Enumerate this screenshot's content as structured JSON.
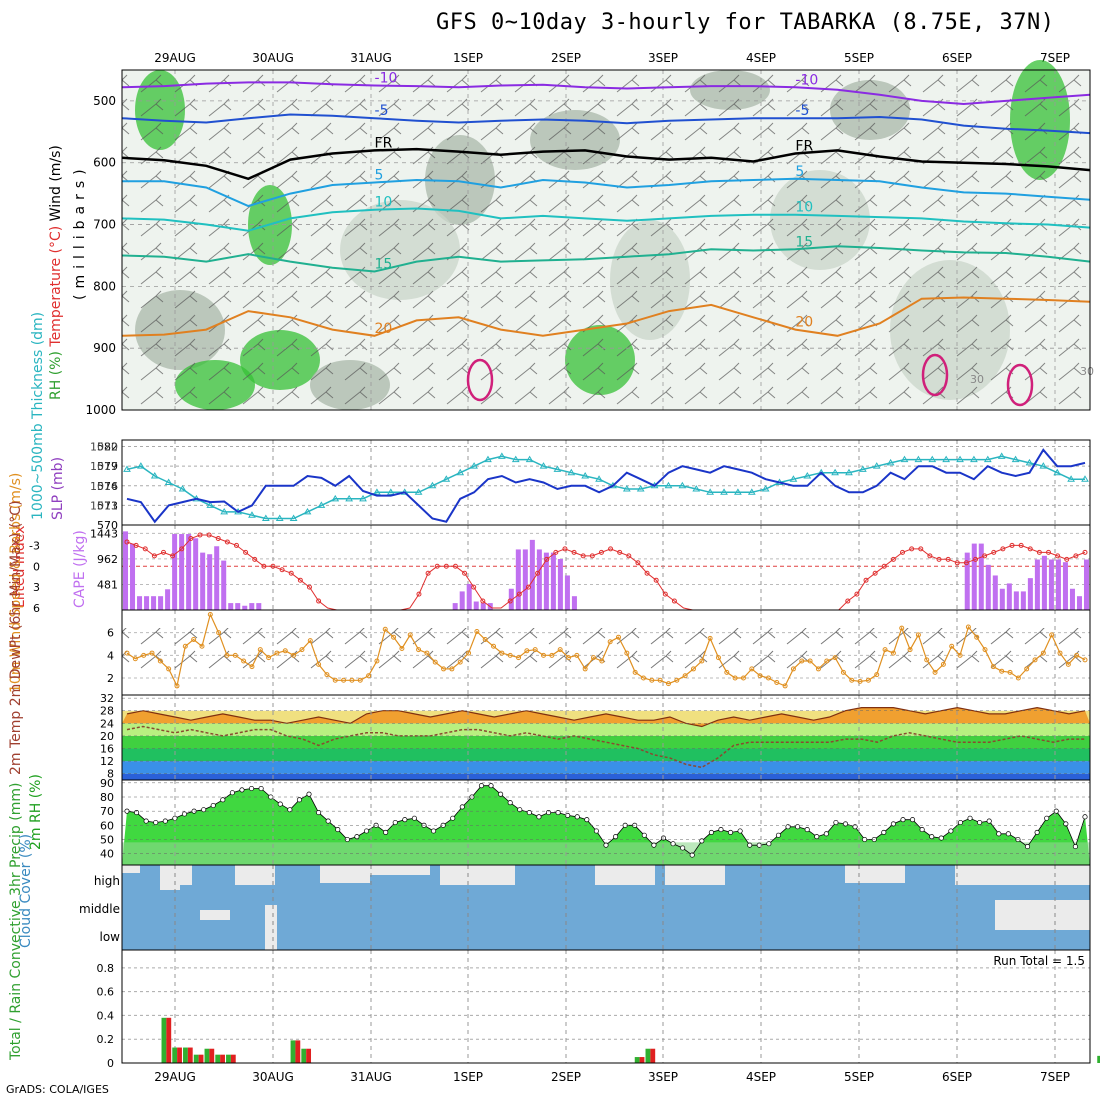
{
  "title": "GFS 0~10day 3-hourly for TABARKA (8.75E, 37N)",
  "footer": "GrADS: COLA/IGES",
  "colors": {
    "rh_light": "#c9d6c9",
    "rh_mid": "#a9b8a9",
    "rh_green": "#35c035",
    "rh_bright": "#00e000",
    "slp": "#1a35c8",
    "thickness": "#2ab5c0",
    "cape": "#c070f0",
    "li": "#e03030",
    "wind": "#e09020",
    "temp_fill": "#f0a030",
    "temp_top": "#e06010",
    "dew_fill": "#f0e080",
    "rh2m": "#30d030",
    "cloud": "#6fa9d6",
    "precip_green": "#30b030",
    "precip_red": "#e02020"
  },
  "chart_data": [
    {
      "type": "heatmap",
      "name": "upper",
      "x_labels": [
        "29AUG",
        "30AUG",
        "31AUG",
        "1SEP",
        "2SEP",
        "3SEP",
        "4SEP",
        "5SEP",
        "6SEP",
        "7SEP"
      ],
      "ylabel_parts": [
        "RH (%)",
        "Temperature (°C)",
        "Wind (m/s)",
        "(millibars)"
      ],
      "y_ticks": [
        500,
        600,
        700,
        800,
        900,
        1000
      ],
      "ylim": [
        450,
        1000
      ],
      "contours": [
        {
          "label": "-10",
          "color": "#8a2be2",
          "values": [
            478,
            476,
            472,
            470,
            470,
            473,
            475,
            476,
            478,
            475,
            474,
            478,
            480,
            478,
            476,
            476,
            478,
            482,
            490,
            500,
            505,
            500,
            495,
            490
          ]
        },
        {
          "label": "-5",
          "color": "#2050d0",
          "values": [
            528,
            532,
            535,
            528,
            522,
            524,
            528,
            532,
            535,
            532,
            530,
            532,
            536,
            532,
            530,
            528,
            528,
            528,
            526,
            530,
            540,
            545,
            548,
            552
          ]
        },
        {
          "label": "FR",
          "color": "#000000",
          "values": [
            592,
            596,
            605,
            626,
            595,
            585,
            580,
            578,
            582,
            587,
            582,
            580,
            590,
            595,
            592,
            598,
            585,
            580,
            590,
            598,
            600,
            602,
            606,
            612
          ]
        },
        {
          "label": "5",
          "color": "#20a0e0",
          "values": [
            630,
            630,
            640,
            670,
            650,
            636,
            632,
            628,
            630,
            640,
            628,
            632,
            640,
            636,
            630,
            628,
            626,
            628,
            630,
            640,
            648,
            650,
            655,
            660
          ]
        },
        {
          "label": "10",
          "color": "#20c0c0",
          "values": [
            690,
            692,
            700,
            710,
            690,
            680,
            676,
            674,
            678,
            690,
            686,
            690,
            694,
            690,
            686,
            684,
            684,
            686,
            688,
            690,
            695,
            698,
            700,
            705
          ]
        },
        {
          "label": "15",
          "color": "#20b090",
          "values": [
            750,
            752,
            760,
            748,
            760,
            770,
            776,
            760,
            752,
            760,
            758,
            756,
            752,
            748,
            740,
            742,
            740,
            735,
            738,
            742,
            745,
            746,
            752,
            760
          ]
        },
        {
          "label": "20",
          "color": "#e08020",
          "values": [
            880,
            878,
            870,
            840,
            850,
            870,
            880,
            855,
            850,
            870,
            880,
            870,
            860,
            840,
            830,
            850,
            870,
            880,
            860,
            820,
            818,
            820,
            822,
            825
          ]
        }
      ],
      "contour_labels_shown": [
        "-10",
        "-5",
        "FR",
        "5",
        "10",
        "15",
        "20",
        "30"
      ]
    },
    {
      "type": "line",
      "name": "slp_thickness",
      "ylabel_left": "1000~500mb Thickness (dm)",
      "ylabel_right": "SLP (mb)",
      "y_ticks_left": [
        570,
        573,
        576,
        579,
        582
      ],
      "y_ticks_right": [
        1011,
        1014,
        1017,
        1020
      ],
      "series": [
        {
          "name": "SLP",
          "values": [
            1012,
            1011.5,
            1008.5,
            1011,
            1011.5,
            1012,
            1011.5,
            1011.6,
            1010,
            1011,
            1014,
            1014,
            1014,
            1015.5,
            1015.2,
            1014,
            1015.5,
            1013.2,
            1012.5,
            1012.5,
            1013,
            1011,
            1009,
            1008.5,
            1012,
            1013,
            1015,
            1015.5,
            1014.5,
            1015,
            1014.5,
            1013.5,
            1014,
            1014,
            1013,
            1014,
            1016,
            1015,
            1014,
            1016,
            1017,
            1016.5,
            1016,
            1017,
            1016.5,
            1016,
            1015,
            1014.5,
            1014,
            1014,
            1016,
            1014,
            1013,
            1013,
            1014,
            1016,
            1015,
            1017,
            1017,
            1016,
            1016,
            1015,
            1017,
            1016,
            1015.5,
            1016,
            1019.5,
            1017,
            1017,
            1017.5
          ]
        },
        {
          "name": "Thickness",
          "values": [
            578.5,
            579,
            577.5,
            576.5,
            575.5,
            574,
            573,
            572,
            572,
            571.5,
            571,
            571,
            571,
            572,
            573,
            574,
            574,
            574,
            575,
            575,
            575,
            575,
            576,
            577,
            578,
            579,
            580,
            580.5,
            580,
            580,
            579,
            578.5,
            578,
            577.5,
            577,
            576,
            575.5,
            575.5,
            576,
            576,
            576,
            575.5,
            575,
            575,
            575,
            575,
            575.5,
            576.5,
            577,
            577.5,
            578,
            578,
            578,
            578.5,
            579,
            579.5,
            580,
            580,
            580,
            580,
            580,
            580,
            580,
            580.5,
            580,
            579.5,
            579,
            578,
            577,
            577
          ]
        }
      ]
    },
    {
      "type": "bar",
      "name": "cape_li",
      "ylabel_left": "Lifted Index",
      "ylabel_right": "CAPE (J/kg)",
      "li_ticks": [
        -3,
        0,
        3,
        6
      ],
      "cape_ticks": [
        481,
        962,
        1443
      ],
      "cape_values": [
        1480,
        1250,
        260,
        260,
        260,
        260,
        390,
        1430,
        1430,
        1430,
        1350,
        1080,
        1050,
        1200,
        930,
        130,
        130,
        80,
        130,
        130,
        10,
        10,
        10,
        10,
        10,
        10,
        10,
        10,
        10,
        10,
        10,
        10,
        10,
        10,
        10,
        10,
        10,
        10,
        10,
        10,
        10,
        10,
        10,
        10,
        10,
        10,
        10,
        130,
        350,
        490,
        160,
        130,
        130,
        10,
        10,
        400,
        1140,
        1140,
        1320,
        1140,
        1080,
        1080,
        960,
        650,
        260,
        10,
        10,
        10,
        10,
        10,
        10,
        10,
        10,
        10,
        10,
        10,
        10,
        10,
        10,
        10,
        10,
        10,
        10,
        10,
        10,
        10,
        10,
        10,
        10,
        10,
        10,
        10,
        10,
        10,
        10,
        10,
        10,
        10,
        10,
        10,
        10,
        10,
        10,
        10,
        10,
        10,
        10,
        10,
        10,
        10,
        10,
        10,
        10,
        10,
        10,
        10,
        10,
        10,
        10,
        10,
        1080,
        1250,
        1250,
        850,
        650,
        400,
        500,
        350,
        350,
        600,
        950,
        1020,
        950,
        950,
        900,
        400,
        260,
        950
      ],
      "li_values": [
        -3.5,
        -3,
        -2.5,
        -1.5,
        -2,
        -1.5,
        -2.5,
        -4,
        -4.5,
        -4.5,
        -4,
        -3.5,
        -3,
        -2,
        -1,
        0,
        0,
        0.5,
        1,
        2,
        3,
        5,
        6,
        7,
        7,
        7,
        7,
        7,
        7,
        7,
        7,
        6,
        4,
        1,
        0,
        0,
        0,
        1,
        3,
        5,
        6,
        6,
        5,
        4,
        3,
        1,
        -1,
        -2,
        -2.5,
        -2,
        -1.5,
        -1.5,
        -2,
        -2.5,
        -2,
        -1.5,
        -0.5,
        1,
        2,
        4,
        5,
        6,
        6.5,
        6.5,
        6.5,
        6.5,
        6.5,
        6.5,
        6.5,
        6.5,
        6.5,
        6.5,
        6.5,
        6.5,
        6.5,
        6.5,
        6.5,
        6.5,
        6.5,
        5,
        4,
        2,
        1,
        0,
        -1,
        -2,
        -2.5,
        -2.5,
        -1.5,
        -1,
        -1,
        -0.5,
        -0.5,
        -1,
        -1.5,
        -2,
        -2.5,
        -3,
        -3,
        -2.5,
        -2,
        -2,
        -1.5,
        -1,
        -1.5,
        -2
      ]
    },
    {
      "type": "line",
      "name": "wind10m",
      "ylabel": "10m Wind Speed & Barbs (m/s)",
      "y_ticks": [
        2,
        4,
        6
      ],
      "values": [
        4.2,
        3.7,
        4.0,
        4.2,
        3.5,
        2.8,
        1.3,
        4.8,
        5.4,
        4.8,
        7.6,
        6.0,
        4.0,
        4.0,
        3.5,
        3.0,
        4.5,
        3.8,
        4.2,
        4.4,
        4.0,
        4.5,
        5.3,
        3.2,
        2.3,
        1.8,
        1.8,
        1.8,
        1.8,
        2.2,
        3.5,
        6.3,
        5.6,
        4.6,
        5.8,
        4.5,
        4.2,
        3.4,
        2.8,
        2.8,
        3.4,
        4.2,
        6.1,
        5.4,
        4.8,
        4.2,
        4.0,
        3.8,
        4.4,
        4.5,
        4.0,
        4.0,
        4.5,
        3.8,
        4.0,
        2.8,
        3.8,
        3.5,
        5.2,
        5.6,
        4.2,
        2.5,
        2.0,
        1.8,
        1.8,
        1.5,
        1.8,
        2.2,
        2.8,
        3.5,
        5.5,
        3.8,
        2.5,
        2.0,
        2.0,
        2.8,
        2.2,
        2.0,
        1.6,
        1.3,
        2.8,
        3.5,
        3.5,
        2.8,
        3.5,
        3.8,
        2.5,
        1.8,
        1.7,
        1.8,
        2.3,
        4.5,
        4.2,
        6.4,
        4.5,
        5.8,
        3.6,
        2.5,
        3.2,
        4.8,
        4.0,
        6.5,
        5.6,
        4.5,
        3.0,
        2.6,
        2.5,
        2.0,
        2.8,
        3.6,
        4.2,
        5.8,
        4.2,
        3.2,
        4.0,
        3.6
      ]
    },
    {
      "type": "area",
      "name": "temp2m",
      "ylabel": "2m Temp 2m DewPt (6hr Min/Max) (°C)",
      "y_ticks": [
        8,
        12,
        16,
        20,
        24,
        28,
        32
      ],
      "temp": [
        27,
        28,
        27,
        26,
        25,
        26,
        27,
        26,
        25,
        25,
        24,
        25,
        26,
        25,
        24,
        27,
        28,
        28,
        27,
        26,
        27,
        28,
        27,
        26,
        27,
        28,
        27,
        26,
        25,
        26,
        27,
        26,
        25,
        25,
        26,
        24,
        23,
        25,
        26,
        25,
        26,
        27,
        26,
        25,
        26,
        28,
        29,
        29,
        29,
        28,
        27,
        28,
        29,
        28,
        27,
        27,
        28,
        29,
        28,
        27,
        28
      ],
      "dewpt": [
        22,
        23,
        22,
        21,
        22,
        21,
        20,
        21,
        22,
        22,
        20,
        19,
        17,
        19,
        20,
        21,
        21,
        20,
        20,
        20,
        21,
        22,
        22,
        21,
        20,
        21,
        20,
        19,
        20,
        19,
        18,
        17,
        16,
        14,
        13,
        11,
        10,
        13,
        17,
        18,
        18,
        18,
        18,
        18,
        18,
        19,
        19,
        18,
        20,
        21,
        20,
        19,
        18,
        18,
        18,
        19,
        20,
        19,
        18,
        19,
        19
      ]
    },
    {
      "type": "area",
      "name": "rh2m",
      "ylabel": "2m RH (%)",
      "y_ticks": [
        40,
        50,
        60,
        70,
        80,
        90
      ],
      "values": [
        70,
        69,
        63,
        62,
        63,
        65,
        68,
        70,
        71,
        74,
        78,
        83,
        85,
        86,
        86,
        80,
        75,
        71,
        78,
        82,
        69,
        63,
        57,
        50,
        52,
        56,
        60,
        55,
        62,
        64,
        65,
        60,
        56,
        60,
        65,
        73,
        80,
        88,
        88,
        82,
        76,
        71,
        69,
        66,
        69,
        69,
        67,
        66,
        64,
        56,
        46,
        52,
        60,
        60,
        53,
        46,
        51,
        47,
        44,
        39,
        49,
        55,
        57,
        55,
        56,
        46,
        46,
        47,
        53,
        59,
        59,
        57,
        52,
        54,
        62,
        61,
        59,
        50,
        50,
        55,
        61,
        64,
        64,
        57,
        52,
        51,
        56,
        62,
        65,
        62,
        63,
        54,
        54,
        50,
        45,
        55,
        65,
        70,
        61,
        45,
        66
      ]
    },
    {
      "type": "heatmap",
      "name": "cloud",
      "ylabel": "Cloud Cover (%)",
      "levels": [
        "high",
        "middle",
        "low"
      ]
    },
    {
      "type": "bar",
      "name": "precip",
      "ylabel": "Total / Rain Convective 3hr Precip (mm)",
      "y_ticks": [
        "0",
        "0.2",
        "0.4",
        "0.6",
        "0.8"
      ],
      "run_total_label": "Run Total = 1.5",
      "values": [
        0,
        0,
        0.38,
        0.13,
        0.13,
        0.07,
        0.12,
        0.07,
        0.07,
        0,
        0,
        0,
        0,
        0,
        0.19,
        0.12,
        0,
        0,
        0,
        0,
        0,
        0,
        0,
        0,
        0,
        0,
        0,
        0,
        0,
        0,
        0,
        0,
        0,
        0,
        0,
        0,
        0,
        0,
        0,
        0,
        0,
        0,
        0,
        0,
        0,
        0,
        0.05,
        0.12,
        0,
        0,
        0,
        0,
        0,
        0,
        0,
        0,
        0,
        0,
        0,
        0,
        0,
        0,
        0,
        0,
        0,
        0,
        0,
        0,
        0,
        0,
        0,
        0,
        0,
        0,
        0,
        0,
        0,
        0,
        0,
        0,
        0,
        0,
        0,
        0,
        0,
        0,
        0,
        0,
        0,
        0.06
      ]
    }
  ]
}
